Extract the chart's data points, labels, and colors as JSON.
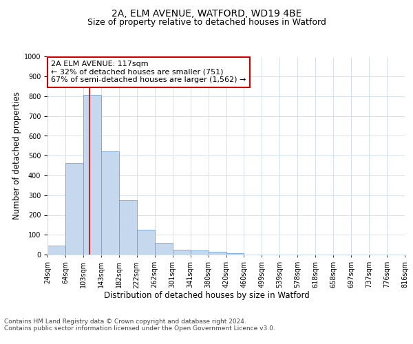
{
  "title": "2A, ELM AVENUE, WATFORD, WD19 4BE",
  "subtitle": "Size of property relative to detached houses in Watford",
  "xlabel": "Distribution of detached houses by size in Watford",
  "ylabel": "Number of detached properties",
  "bar_values": [
    46,
    462,
    808,
    520,
    275,
    125,
    60,
    25,
    22,
    13,
    8,
    0,
    0,
    0,
    0,
    0,
    0,
    0,
    0
  ],
  "x_tick_labels": [
    "24sqm",
    "64sqm",
    "103sqm",
    "143sqm",
    "182sqm",
    "222sqm",
    "262sqm",
    "301sqm",
    "341sqm",
    "380sqm",
    "420sqm",
    "460sqm",
    "499sqm",
    "539sqm",
    "578sqm",
    "618sqm",
    "658sqm",
    "697sqm",
    "737sqm",
    "776sqm",
    "816sqm"
  ],
  "bar_color": "#c5d8ed",
  "bar_edge_color": "#5b9bd5",
  "grid_color": "#d0dce8",
  "background_color": "#ffffff",
  "annotation_text": "2A ELM AVENUE: 117sqm\n← 32% of detached houses are smaller (751)\n67% of semi-detached houses are larger (1,562) →",
  "annotation_box_color": "#ffffff",
  "annotation_box_edge": "#cc0000",
  "vline_color": "#cc0000",
  "ylim": [
    0,
    1000
  ],
  "yticks": [
    0,
    100,
    200,
    300,
    400,
    500,
    600,
    700,
    800,
    900,
    1000
  ],
  "footer_text": "Contains HM Land Registry data © Crown copyright and database right 2024.\nContains public sector information licensed under the Open Government Licence v3.0.",
  "title_fontsize": 10,
  "subtitle_fontsize": 9,
  "axis_label_fontsize": 8.5,
  "tick_fontsize": 7,
  "annotation_fontsize": 8,
  "footer_fontsize": 6.5
}
